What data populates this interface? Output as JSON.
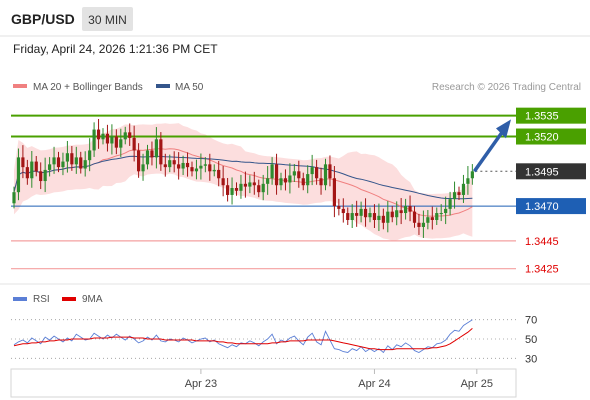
{
  "header": {
    "symbol": "GBP/USD",
    "timeframe": "30 MIN",
    "datetime": "Friday, April 24, 2026 1:21:36 PM CET"
  },
  "legend": {
    "ma20_label": "MA 20 + Bollinger Bands",
    "ma50_label": "MA 50",
    "source": "Research © 2026 Trading Central",
    "ma20_color": "#f08080",
    "ma50_color": "#34558b"
  },
  "rsi_legend": {
    "rsi_label": "RSI",
    "ma_label": "9MA",
    "rsi_color": "#5b7fd6",
    "ma_color": "#e00000"
  },
  "colors": {
    "up": "#2e8b2e",
    "down": "#a31515",
    "resistance": "#4aa000",
    "pivot": "#1e5fb4",
    "support": "#f4a0a0",
    "last": "#333333",
    "band": "#fcd8d8"
  },
  "chart_data": [
    {
      "type": "candlestick",
      "ylim": [
        1.3414,
        1.3552
      ],
      "x_ticks": [
        {
          "label": "Apr 23",
          "index": 42
        },
        {
          "label": "Apr 24",
          "index": 81
        },
        {
          "label": "Apr 25",
          "index": 104
        }
      ],
      "levels": [
        {
          "value": 1.3535,
          "label": "1.3535",
          "kind": "resistance"
        },
        {
          "value": 1.352,
          "label": "1.3520",
          "kind": "resistance"
        },
        {
          "value": 1.3495,
          "label": "1.3495",
          "kind": "last"
        },
        {
          "value": 1.347,
          "label": "1.3470",
          "kind": "pivot"
        },
        {
          "value": 1.3445,
          "label": "1.3445",
          "kind": "support"
        },
        {
          "value": 1.3425,
          "label": "1.3425",
          "kind": "support"
        }
      ],
      "closes": [
        1.348,
        1.3505,
        1.3498,
        1.349,
        1.3502,
        1.3495,
        1.3488,
        1.3496,
        1.35,
        1.3505,
        1.3498,
        1.3502,
        1.3508,
        1.35,
        1.3505,
        1.3497,
        1.3503,
        1.351,
        1.3525,
        1.3518,
        1.3522,
        1.3515,
        1.352,
        1.3512,
        1.3518,
        1.3523,
        1.3519,
        1.351,
        1.3495,
        1.35,
        1.351,
        1.3505,
        1.3518,
        1.35,
        1.3498,
        1.3503,
        1.35,
        1.3497,
        1.3501,
        1.3498,
        1.3495,
        1.3497,
        1.3499,
        1.35,
        1.3495,
        1.3496,
        1.349,
        1.3485,
        1.3478,
        1.3483,
        1.3481,
        1.3486,
        1.3484,
        1.3487,
        1.3485,
        1.348,
        1.3486,
        1.349,
        1.35,
        1.3485,
        1.349,
        1.3487,
        1.3492,
        1.3495,
        1.349,
        1.3485,
        1.3493,
        1.3498,
        1.349,
        1.3485,
        1.35,
        1.349,
        1.347,
        1.3468,
        1.3465,
        1.346,
        1.3465,
        1.3463,
        1.3468,
        1.3462,
        1.3465,
        1.346,
        1.3463,
        1.3458,
        1.3466,
        1.3462,
        1.3467,
        1.3465,
        1.347,
        1.3466,
        1.3458,
        1.3455,
        1.3458,
        1.3462,
        1.346,
        1.3465,
        1.3465,
        1.3468,
        1.3475,
        1.348,
        1.3478,
        1.3486,
        1.349,
        1.3495
      ],
      "annotation": {
        "type": "arrow",
        "from": 1.3495,
        "to": 1.3528
      }
    },
    {
      "type": "line",
      "ylim": [
        20,
        80
      ],
      "y_ticks": [
        70,
        50,
        30
      ],
      "series": [
        {
          "name": "RSI",
          "values": [
            44,
            47,
            49,
            46,
            51,
            48,
            45,
            52,
            49,
            53,
            50,
            47,
            51,
            48,
            55,
            52,
            49,
            50,
            56,
            53,
            50,
            54,
            51,
            55,
            52,
            49,
            53,
            50,
            46,
            48,
            52,
            49,
            54,
            48,
            47,
            50,
            49,
            47,
            51,
            49,
            46,
            48,
            50,
            51,
            47,
            49,
            45,
            43,
            41,
            44,
            42,
            46,
            45,
            48,
            46,
            43,
            47,
            50,
            55,
            45,
            49,
            47,
            51,
            53,
            48,
            44,
            52,
            56,
            47,
            44,
            58,
            49,
            40,
            39,
            37,
            36,
            40,
            38,
            42,
            37,
            40,
            37,
            40,
            36,
            43,
            39,
            44,
            42,
            46,
            43,
            38,
            36,
            39,
            42,
            41,
            45,
            46,
            49,
            55,
            59,
            58,
            64,
            67,
            70
          ]
        },
        {
          "name": "9MA",
          "values": [
            43,
            44,
            45,
            45,
            46,
            46,
            47,
            47,
            48,
            48,
            49,
            49,
            49,
            50,
            50,
            50,
            50,
            50,
            51,
            51,
            51,
            51,
            52,
            52,
            52,
            52,
            52,
            51,
            51,
            51,
            50,
            50,
            50,
            50,
            49,
            49,
            49,
            49,
            49,
            49,
            49,
            48,
            48,
            48,
            48,
            48,
            47,
            47,
            46,
            46,
            45,
            45,
            45,
            45,
            45,
            45,
            45,
            45,
            46,
            46,
            47,
            47,
            48,
            48,
            48,
            48,
            49,
            49,
            49,
            49,
            49,
            49,
            48,
            47,
            46,
            45,
            44,
            43,
            42,
            41,
            40,
            40,
            39,
            39,
            39,
            39,
            40,
            40,
            40,
            40,
            40,
            40,
            40,
            40,
            41,
            41,
            42,
            43,
            45,
            48,
            51,
            54,
            57,
            61
          ]
        }
      ]
    }
  ]
}
